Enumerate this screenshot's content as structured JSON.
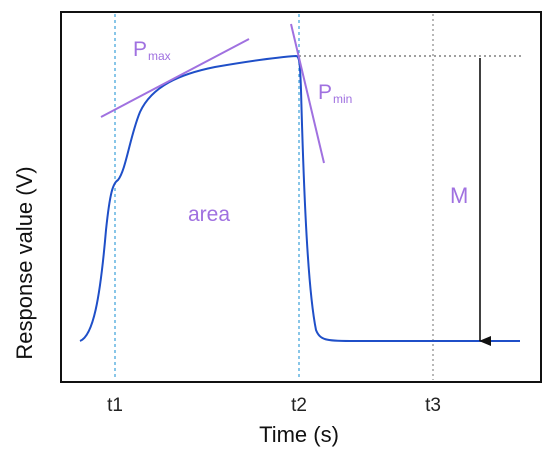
{
  "labels": {
    "x_axis_title": "Time (s)",
    "y_axis_title": "Response value (V)",
    "ticks": [
      "t1",
      "t2",
      "t3"
    ],
    "p_max_main": "P",
    "p_max_sub": "max",
    "p_min_main": "P",
    "p_min_sub": "min",
    "area": "area",
    "magnitude": "M"
  },
  "colors": {
    "curve": "#1f4fc8",
    "annotation": "#a071e0",
    "axis": "#111111",
    "dashed_marker": "#3aa0d8",
    "grey_marker": "#888888",
    "arrow": "#111111"
  }
}
